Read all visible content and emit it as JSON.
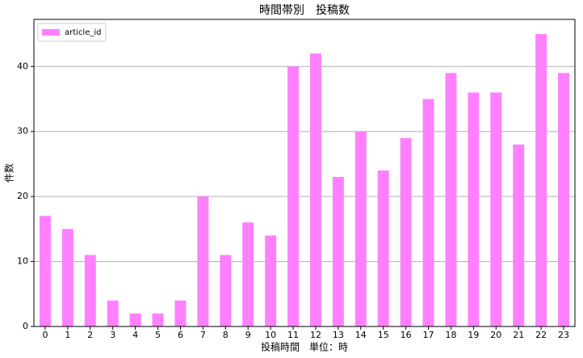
{
  "chart_data": {
    "type": "bar",
    "title": "時間帯別　投稿数",
    "x_label": "投稿時間　単位：時",
    "y_label": "件数",
    "categories": [
      "0",
      "1",
      "2",
      "3",
      "4",
      "5",
      "6",
      "7",
      "8",
      "9",
      "10",
      "11",
      "12",
      "13",
      "14",
      "15",
      "16",
      "17",
      "18",
      "19",
      "20",
      "21",
      "22",
      "23"
    ],
    "series": [
      {
        "name": "article_id",
        "color": "#ff80ff",
        "values": [
          17,
          15,
          11,
          4,
          2,
          2,
          4,
          20,
          11,
          16,
          14,
          40,
          42,
          23,
          30,
          24,
          29,
          35,
          39,
          36,
          36,
          28,
          45,
          39
        ]
      }
    ],
    "ylim": [
      0,
      47.25
    ],
    "yticks": [
      0,
      10,
      20,
      30,
      40
    ],
    "grid": true,
    "legend": "upper-left"
  }
}
